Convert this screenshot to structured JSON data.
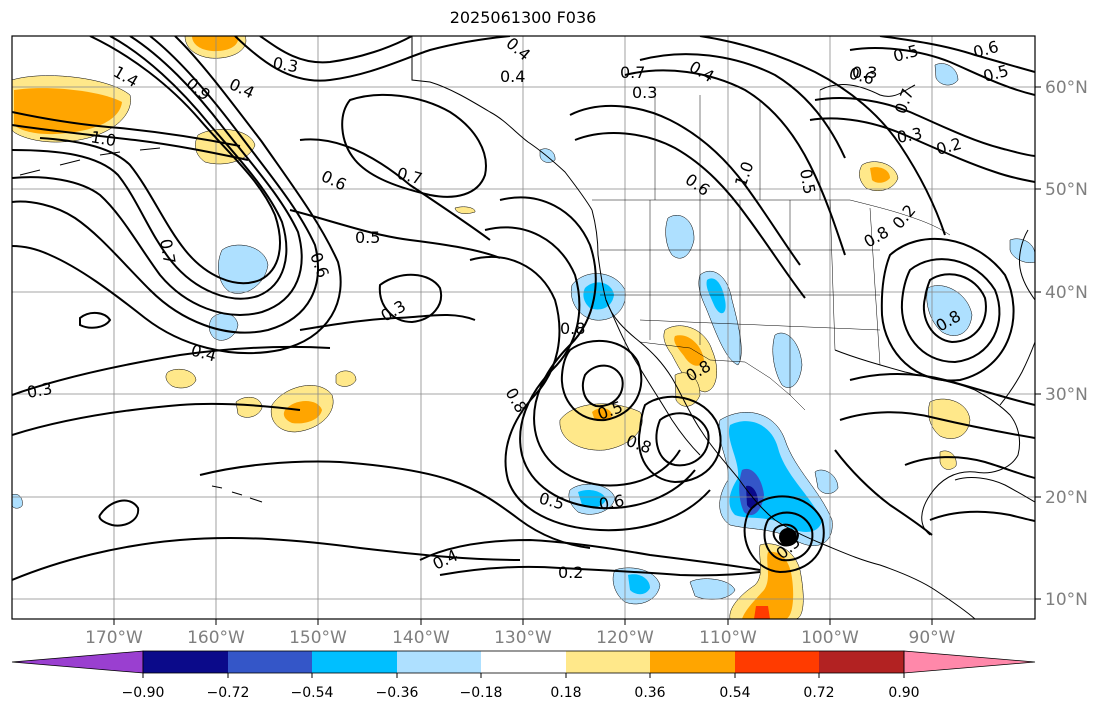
{
  "title": "2025061300 F036",
  "lon_ticks": [
    "170°W",
    "160°W",
    "150°W",
    "140°W",
    "130°W",
    "120°W",
    "110°W",
    "100°W",
    "90°W"
  ],
  "lat_ticks": [
    "60°N",
    "50°N",
    "40°N",
    "30°N",
    "20°N",
    "10°N"
  ],
  "colorbar": {
    "tick_labels": [
      "−0.90",
      "−0.72",
      "−0.54",
      "−0.36",
      "−0.18",
      "0.18",
      "0.36",
      "0.54",
      "0.72",
      "0.90"
    ],
    "colors": [
      "#9a3fd0",
      "#0b0a8a",
      "#3456c8",
      "#00bfff",
      "#aee0ff",
      "#ffffff",
      "#ffe88a",
      "#ffa500",
      "#ff3b00",
      "#b22222",
      "#ff88aa"
    ]
  },
  "contour_labels": [
    {
      "t": "1.4"
    },
    {
      "t": "0.9"
    },
    {
      "t": "0.4"
    },
    {
      "t": "0.3"
    },
    {
      "t": "1.0"
    },
    {
      "t": "0.6"
    },
    {
      "t": "0.7"
    },
    {
      "t": "0.5"
    },
    {
      "t": "0.6"
    },
    {
      "t": "0.7"
    },
    {
      "t": "0.3"
    },
    {
      "t": "0.4"
    },
    {
      "t": "0.3"
    },
    {
      "t": "0.4"
    },
    {
      "t": "0.4"
    },
    {
      "t": "0.7"
    },
    {
      "t": "0.3"
    },
    {
      "t": "0.4"
    },
    {
      "t": "0.6"
    },
    {
      "t": "0.5"
    },
    {
      "t": "0.3"
    },
    {
      "t": "0.6"
    },
    {
      "t": "1.0"
    },
    {
      "t": "0.5"
    },
    {
      "t": "0.6"
    },
    {
      "t": "0.7"
    },
    {
      "t": "0.5"
    },
    {
      "t": "0.2"
    },
    {
      "t": "0.3"
    },
    {
      "t": "0.8"
    },
    {
      "t": "0.8"
    },
    {
      "t": "0.8"
    },
    {
      "t": "0.5"
    },
    {
      "t": "0.8"
    },
    {
      "t": "0.5"
    },
    {
      "t": "0.6"
    },
    {
      "t": "0.4"
    },
    {
      "t": "0.2"
    },
    {
      "t": "0.5"
    },
    {
      "t": "0.8"
    },
    {
      "t": "0.8"
    },
    {
      "t": "0.2"
    }
  ]
}
